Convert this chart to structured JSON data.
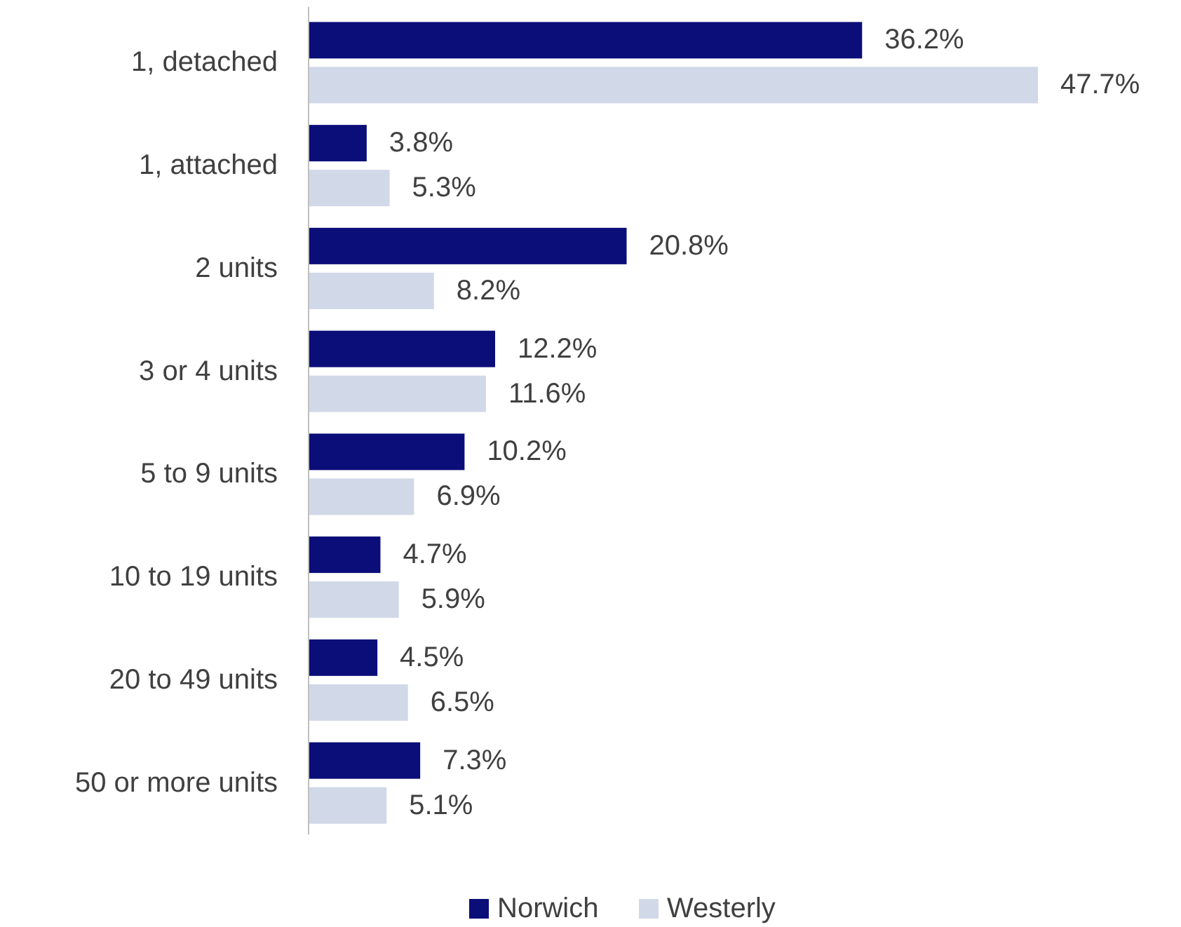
{
  "chart_data": {
    "type": "bar",
    "orientation": "horizontal",
    "categories": [
      "1, detached",
      "1, attached",
      "2 units",
      "3 or 4 units",
      "5 to 9 units",
      "10 to 19 units",
      "20 to 49 units",
      "50 or more units"
    ],
    "series": [
      {
        "name": "Norwich",
        "color": "#0b0d78",
        "values": [
          36.2,
          3.8,
          20.8,
          12.2,
          10.2,
          4.7,
          4.5,
          7.3
        ],
        "value_labels": [
          "36.2%",
          "3.8%",
          "20.8%",
          "12.2%",
          "10.2%",
          "4.7%",
          "4.5%",
          "7.3%"
        ]
      },
      {
        "name": "Westerly",
        "color": "#d1d8e7",
        "values": [
          47.7,
          5.3,
          8.2,
          11.6,
          6.9,
          5.9,
          6.5,
          5.1
        ],
        "value_labels": [
          "47.7%",
          "5.3%",
          "8.2%",
          "11.6%",
          "6.9%",
          "5.9%",
          "6.5%",
          "5.1%"
        ]
      }
    ],
    "legend": "bottom"
  }
}
